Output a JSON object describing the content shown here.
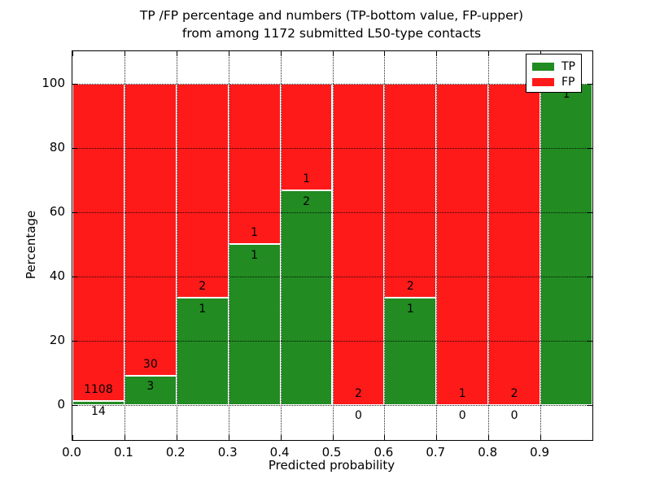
{
  "chart": {
    "title_line1": "TP /FP percentage and numbers (TP-bottom value, FP-upper)",
    "title_line2": "from among 1172 submitted L50-type contacts",
    "xlabel": "Predicted probability",
    "ylabel": "Percentage"
  },
  "chart_data": {
    "type": "bar",
    "stacked": true,
    "normalized": "each bin scaled to 100%",
    "title": "TP /FP percentage and numbers (TP-bottom value, FP-upper) from among 1172 submitted L50-type contacts",
    "xlabel": "Predicted probability",
    "ylabel": "Percentage",
    "total_contacts": 1172,
    "categories": [
      "0.0-0.1",
      "0.1-0.2",
      "0.2-0.3",
      "0.3-0.4",
      "0.4-0.5",
      "0.5-0.6",
      "0.6-0.7",
      "0.7-0.8",
      "0.8-0.9",
      "0.9-1.0"
    ],
    "bin_edges": [
      0.0,
      0.1,
      0.2,
      0.3,
      0.4,
      0.5,
      0.6,
      0.7,
      0.8,
      0.9,
      1.0
    ],
    "series": [
      {
        "name": "TP",
        "color": "#228b22",
        "counts": [
          14,
          3,
          1,
          1,
          2,
          0,
          1,
          0,
          0,
          1
        ],
        "percent": [
          1.25,
          9.09,
          33.33,
          50.0,
          66.67,
          0.0,
          33.33,
          0.0,
          0.0,
          100.0
        ]
      },
      {
        "name": "FP",
        "color": "#ff1a1a",
        "counts": [
          1108,
          30,
          2,
          1,
          1,
          2,
          2,
          1,
          2,
          0
        ],
        "percent": [
          98.75,
          90.91,
          66.67,
          50.0,
          33.33,
          100.0,
          66.67,
          100.0,
          100.0,
          0.0
        ]
      }
    ],
    "x_ticks": [
      "0.0",
      "0.1",
      "0.2",
      "0.3",
      "0.4",
      "0.5",
      "0.6",
      "0.7",
      "0.8",
      "0.9"
    ],
    "y_ticks": [
      0,
      20,
      40,
      60,
      80,
      100
    ],
    "xlim": [
      0.0,
      1.0
    ],
    "ylim": [
      -11,
      110
    ],
    "grid": true,
    "grid_style": "dotted",
    "bar_edge_color": "#ffffff",
    "annotation_offset_pct": 3.5,
    "legend_position": "upper right",
    "legend": [
      {
        "label": "TP",
        "color": "#228b22"
      },
      {
        "label": "FP",
        "color": "#ff1a1a"
      }
    ]
  }
}
